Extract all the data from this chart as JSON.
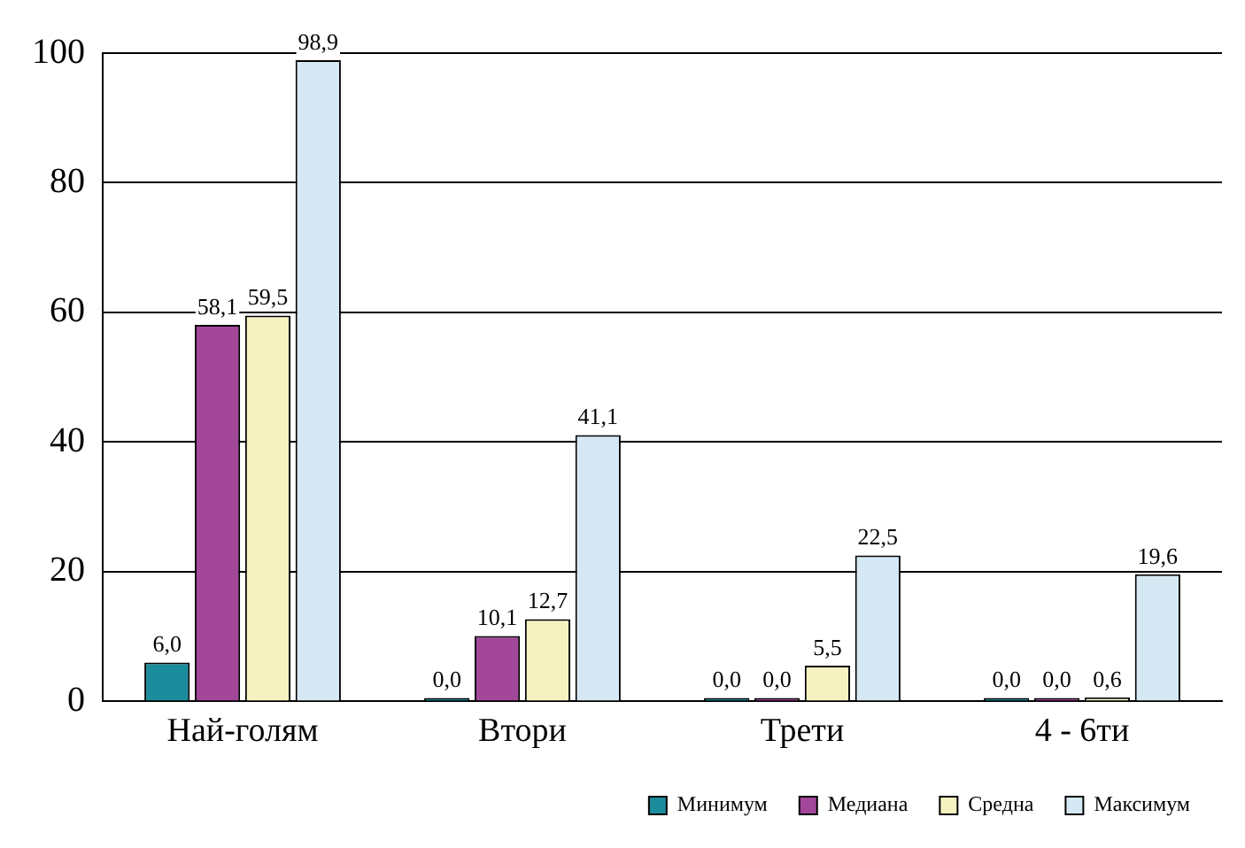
{
  "chart_data": {
    "type": "bar",
    "categories": [
      "Най-голям",
      "Втори",
      "Трети",
      "4 - 6ти"
    ],
    "series": [
      {
        "name": "Минимум",
        "color": "#1b8c9c",
        "values": [
          6.0,
          0.0,
          0.0,
          0.0
        ],
        "value_labels": [
          "6,0",
          "0,0",
          "0,0",
          "0,0"
        ]
      },
      {
        "name": "Медиана",
        "color": "#a3479b",
        "values": [
          58.1,
          10.1,
          0.0,
          0.0
        ],
        "value_labels": [
          "58,1",
          "10,1",
          "0,0",
          "0,0"
        ]
      },
      {
        "name": "Средна",
        "color": "#f6f1c1",
        "values": [
          59.5,
          12.7,
          5.5,
          0.6
        ],
        "value_labels": [
          "59,5",
          "12,7",
          "5,5",
          "0,6"
        ]
      },
      {
        "name": "Максимум",
        "color": "#d5e8f3",
        "values": [
          98.9,
          41.1,
          22.5,
          19.6
        ],
        "value_labels": [
          "98,9",
          "41,1",
          "22,5",
          "19,6"
        ]
      }
    ],
    "ylim": [
      0,
      100
    ],
    "yticks": [
      0,
      20,
      40,
      60,
      80,
      100
    ],
    "grid": "y",
    "legend": "bottom right"
  }
}
